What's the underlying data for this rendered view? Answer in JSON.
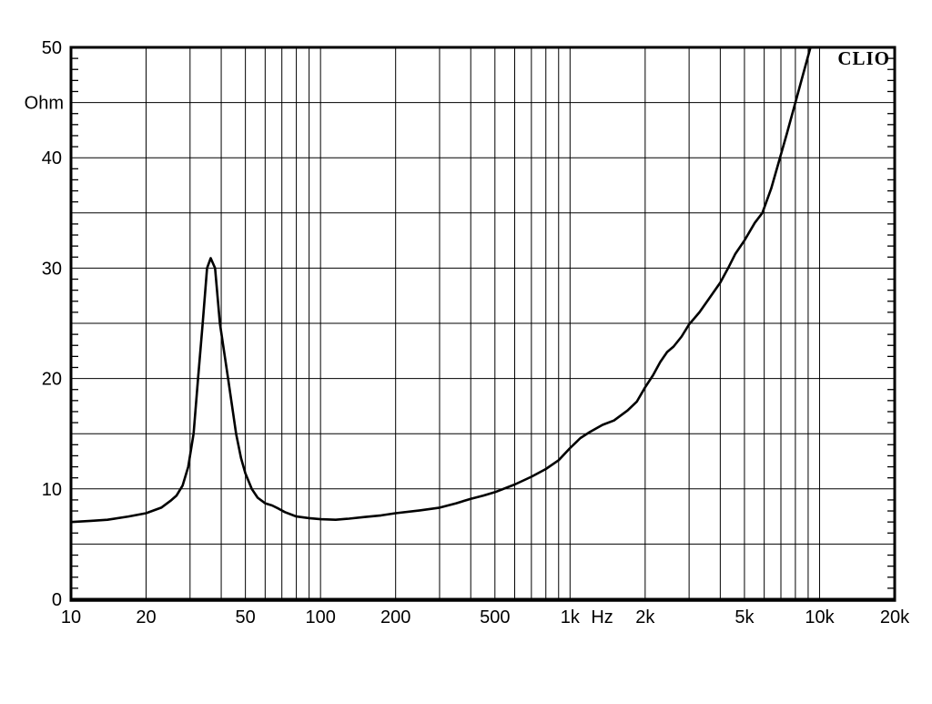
{
  "window": {
    "background": "#ffffff"
  },
  "brand": {
    "label": "CLIO"
  },
  "chart_data": {
    "type": "line",
    "title": "",
    "xlabel": "Hz",
    "ylabel": "Ohm",
    "x_scale": "log",
    "xlim": [
      10,
      20000
    ],
    "ylim": [
      0,
      50
    ],
    "grid": true,
    "grid_color": "#000000",
    "line_color": "#000000",
    "background_color": "#ffffff",
    "y_gridline_step": 5,
    "y_label_step": 10,
    "y_minor_tick_step": 1,
    "x_ticks": [
      {
        "value": 10,
        "label": "10"
      },
      {
        "value": 20,
        "label": "20"
      },
      {
        "value": 50,
        "label": "50"
      },
      {
        "value": 100,
        "label": "100"
      },
      {
        "value": 200,
        "label": "200"
      },
      {
        "value": 500,
        "label": "500"
      },
      {
        "value": 1000,
        "label": "1k"
      },
      {
        "value": 2000,
        "label": "2k"
      },
      {
        "value": 5000,
        "label": "5k"
      },
      {
        "value": 10000,
        "label": "10k"
      },
      {
        "value": 20000,
        "label": "20k"
      }
    ],
    "y_ticks": [
      {
        "value": 0,
        "label": "0"
      },
      {
        "value": 10,
        "label": "10"
      },
      {
        "value": 20,
        "label": "20"
      },
      {
        "value": 30,
        "label": "30"
      },
      {
        "value": 40,
        "label": "40"
      },
      {
        "value": 50,
        "label": "50"
      }
    ],
    "y_unit_label": "Ohm",
    "y_unit_label_at": 45,
    "x_unit_label": "Hz",
    "series": [
      {
        "name": "impedance-magnitude",
        "points": [
          [
            10,
            7.0
          ],
          [
            12,
            7.1
          ],
          [
            14,
            7.2
          ],
          [
            17,
            7.5
          ],
          [
            20,
            7.8
          ],
          [
            23,
            8.3
          ],
          [
            25,
            8.9
          ],
          [
            26.5,
            9.4
          ],
          [
            28,
            10.3
          ],
          [
            29.5,
            12.0
          ],
          [
            31,
            15.0
          ],
          [
            32.3,
            20.0
          ],
          [
            33.7,
            25.0
          ],
          [
            35.1,
            30.0
          ],
          [
            36.3,
            30.9
          ],
          [
            37.8,
            30.0
          ],
          [
            39.5,
            25.0
          ],
          [
            42.6,
            20.0
          ],
          [
            45.9,
            15.0
          ],
          [
            48,
            12.8
          ],
          [
            50,
            11.4
          ],
          [
            53,
            10.0
          ],
          [
            56,
            9.2
          ],
          [
            60,
            8.7
          ],
          [
            64,
            8.5
          ],
          [
            68,
            8.2
          ],
          [
            72,
            7.9
          ],
          [
            80,
            7.5
          ],
          [
            90,
            7.35
          ],
          [
            100,
            7.25
          ],
          [
            115,
            7.2
          ],
          [
            130,
            7.3
          ],
          [
            150,
            7.45
          ],
          [
            175,
            7.6
          ],
          [
            200,
            7.8
          ],
          [
            250,
            8.05
          ],
          [
            300,
            8.3
          ],
          [
            350,
            8.7
          ],
          [
            400,
            9.1
          ],
          [
            450,
            9.4
          ],
          [
            500,
            9.7
          ],
          [
            600,
            10.4
          ],
          [
            700,
            11.1
          ],
          [
            800,
            11.8
          ],
          [
            900,
            12.6
          ],
          [
            1000,
            13.7
          ],
          [
            1100,
            14.6
          ],
          [
            1200,
            15.15
          ],
          [
            1350,
            15.8
          ],
          [
            1500,
            16.2
          ],
          [
            1700,
            17.1
          ],
          [
            1850,
            17.9
          ],
          [
            2000,
            19.2
          ],
          [
            2150,
            20.3
          ],
          [
            2300,
            21.5
          ],
          [
            2450,
            22.4
          ],
          [
            2600,
            22.9
          ],
          [
            2800,
            23.8
          ],
          [
            3000,
            24.9
          ],
          [
            3300,
            26.0
          ],
          [
            3600,
            27.2
          ],
          [
            4000,
            28.7
          ],
          [
            4300,
            30.0
          ],
          [
            4600,
            31.3
          ],
          [
            5000,
            32.5
          ],
          [
            5500,
            34.1
          ],
          [
            5900,
            35.0
          ],
          [
            6400,
            37.2
          ],
          [
            6900,
            39.8
          ],
          [
            7400,
            42.2
          ],
          [
            8000,
            45.0
          ],
          [
            8600,
            47.6
          ],
          [
            9200,
            50.0
          ]
        ]
      }
    ]
  }
}
